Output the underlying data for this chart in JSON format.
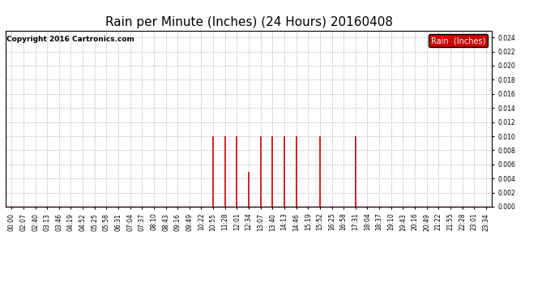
{
  "title": "Rain per Minute (Inches) (24 Hours) 20160408",
  "copyright": "Copyright 2016 Cartronics.com",
  "ylim": [
    0.0,
    0.025
  ],
  "yticks": [
    0.0,
    0.002,
    0.004,
    0.006,
    0.008,
    0.01,
    0.012,
    0.014,
    0.016,
    0.018,
    0.02,
    0.022,
    0.024
  ],
  "legend_label": "Rain  (Inches)",
  "legend_bg": "#cc0000",
  "line_color": "#cc0000",
  "baseline_color": "#cc0000",
  "grid_color": "#bbbbbb",
  "bg_color": "#ffffff",
  "x_labels": [
    "00:00",
    "02:07",
    "02:40",
    "03:13",
    "03:46",
    "04:19",
    "04:52",
    "05:25",
    "05:58",
    "06:31",
    "07:04",
    "07:37",
    "08:10",
    "08:43",
    "09:16",
    "09:49",
    "10:22",
    "10:55",
    "11:28",
    "12:01",
    "12:34",
    "13:07",
    "13:40",
    "14:13",
    "14:46",
    "15:19",
    "15:52",
    "16:25",
    "16:58",
    "17:31",
    "18:04",
    "18:37",
    "19:10",
    "19:43",
    "20:16",
    "20:49",
    "21:22",
    "21:55",
    "22:28",
    "23:01",
    "23:34"
  ],
  "spikes": [
    {
      "index": 17,
      "value": 0.01
    },
    {
      "index": 18,
      "value": 0.01
    },
    {
      "index": 19,
      "value": 0.01
    },
    {
      "index": 20,
      "value": 0.005
    },
    {
      "index": 21,
      "value": 0.01
    },
    {
      "index": 22,
      "value": 0.01
    },
    {
      "index": 23,
      "value": 0.01
    },
    {
      "index": 24,
      "value": 0.01
    },
    {
      "index": 26,
      "value": 0.01
    },
    {
      "index": 29,
      "value": 0.01
    }
  ],
  "title_fontsize": 11,
  "tick_fontsize": 5.5,
  "copyright_fontsize": 6.5,
  "legend_fontsize": 7
}
